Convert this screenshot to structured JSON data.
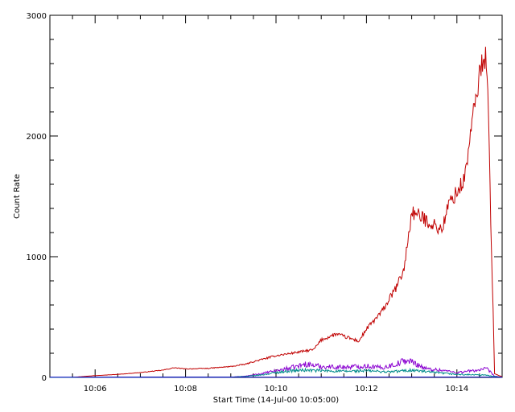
{
  "chart_data": {
    "type": "line",
    "title": "",
    "xlabel": "Start Time (14-Jul-00 10:05:00)",
    "ylabel": "Count Rate",
    "xlim": [
      "10:05:00",
      "10:15:00"
    ],
    "ylim": [
      0,
      3000
    ],
    "x_ticks": [
      "10:06",
      "10:08",
      "10:10",
      "10:12",
      "10:14"
    ],
    "y_ticks": [
      "0",
      "1000",
      "2000",
      "3000"
    ],
    "grid": false,
    "legend": "none",
    "series": [
      {
        "color": "#c00000",
        "x": [
          "10:05:00",
          "10:05:30",
          "10:06:00",
          "10:06:30",
          "10:07:00",
          "10:07:30",
          "10:07:45",
          "10:08:00",
          "10:08:30",
          "10:09:00",
          "10:09:20",
          "10:09:30",
          "10:10:00",
          "10:10:30",
          "10:10:50",
          "10:11:00",
          "10:11:20",
          "10:11:30",
          "10:11:50",
          "10:12:00",
          "10:12:20",
          "10:12:40",
          "10:12:50",
          "10:13:00",
          "10:13:20",
          "10:13:40",
          "10:13:50",
          "10:14:00",
          "10:14:10",
          "10:14:20",
          "10:14:30",
          "10:14:35",
          "10:14:40",
          "10:14:50",
          "10:15:00"
        ],
        "values": [
          0,
          0,
          15,
          25,
          40,
          60,
          80,
          70,
          75,
          90,
          110,
          130,
          180,
          210,
          230,
          310,
          360,
          340,
          300,
          400,
          540,
          750,
          900,
          1370,
          1300,
          1220,
          1450,
          1530,
          1640,
          2100,
          2500,
          2680,
          2600,
          30,
          5
        ]
      },
      {
        "color": "#8a00d0",
        "x": [
          "10:05:00",
          "10:09:00",
          "10:09:20",
          "10:09:40",
          "10:10:00",
          "10:10:20",
          "10:10:40",
          "10:11:00",
          "10:11:30",
          "10:12:00",
          "10:12:20",
          "10:12:40",
          "10:12:50",
          "10:13:00",
          "10:13:20",
          "10:13:40",
          "10:14:00",
          "10:14:20",
          "10:14:40",
          "10:14:50",
          "10:15:00"
        ],
        "values": [
          0,
          2,
          10,
          30,
          55,
          80,
          110,
          90,
          85,
          95,
          80,
          110,
          140,
          130,
          70,
          60,
          40,
          55,
          70,
          10,
          0
        ]
      },
      {
        "color": "#008b8b",
        "x": [
          "10:05:00",
          "10:09:00",
          "10:09:20",
          "10:09:40",
          "10:10:00",
          "10:10:20",
          "10:10:40",
          "10:11:00",
          "10:11:30",
          "10:12:00",
          "10:12:30",
          "10:13:00",
          "10:13:30",
          "10:14:00",
          "10:14:30",
          "10:14:40",
          "10:14:50",
          "10:15:00"
        ],
        "values": [
          0,
          2,
          8,
          20,
          40,
          55,
          60,
          55,
          50,
          55,
          45,
          60,
          40,
          25,
          20,
          18,
          8,
          0
        ]
      },
      {
        "color": "#0000c0",
        "x": [
          "10:05:00",
          "10:10:00",
          "10:14:40",
          "10:15:00"
        ],
        "values": [
          2,
          2,
          3,
          1
        ]
      }
    ]
  }
}
